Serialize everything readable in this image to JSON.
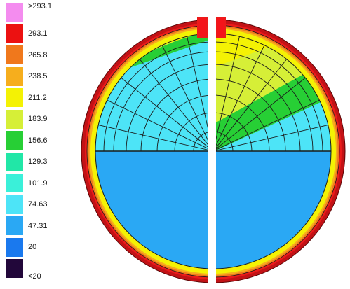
{
  "legend": {
    "entries": [
      {
        "label": ">293.1",
        "color": "#f48cef"
      },
      {
        "label": "293.1",
        "color": "#ec1111"
      },
      {
        "label": "265.8",
        "color": "#f0781c"
      },
      {
        "label": "238.5",
        "color": "#f6ae1d"
      },
      {
        "label": "211.2",
        "color": "#f4f204"
      },
      {
        "label": "183.9",
        "color": "#d6ef37"
      },
      {
        "label": "156.6",
        "color": "#27cf35"
      },
      {
        "label": "129.3",
        "color": "#21e7a7"
      },
      {
        "label": "101.9",
        "color": "#3af0d9"
      },
      {
        "label": "74.63",
        "color": "#4de4f7"
      },
      {
        "label": "47.31",
        "color": "#2aa8f4"
      },
      {
        "label": "20",
        "color": "#1a79ee"
      },
      {
        "label": "<20",
        "color": "#22073a"
      }
    ]
  },
  "colors": {
    "shell_outer": "#c21216",
    "shell_red": "#ec1a1a",
    "shell_orange": "#f0781c",
    "shell_amber": "#f6ae1d",
    "shell_yellow": "#f4f204",
    "lime": "#d6ef37",
    "yellow": "#f4f204",
    "green": "#27cf35",
    "cyan": "#4de4f7",
    "blue": "#2aa8f4",
    "mesh": "#1a1a1a"
  }
}
